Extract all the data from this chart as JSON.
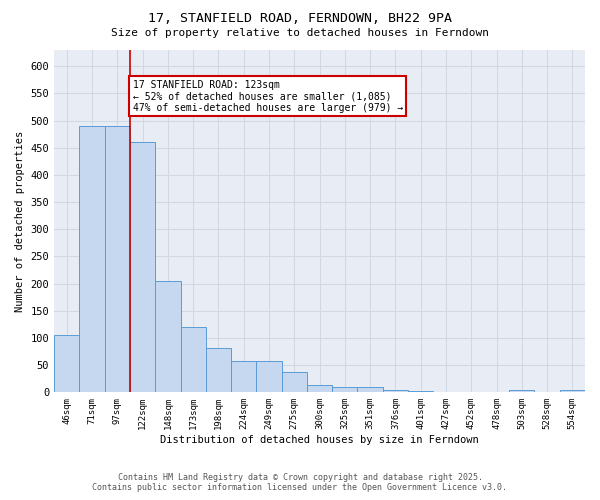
{
  "title_line1": "17, STANFIELD ROAD, FERNDOWN, BH22 9PA",
  "title_line2": "Size of property relative to detached houses in Ferndown",
  "xlabel": "Distribution of detached houses by size in Ferndown",
  "ylabel": "Number of detached properties",
  "categories": [
    "46sqm",
    "71sqm",
    "97sqm",
    "122sqm",
    "148sqm",
    "173sqm",
    "198sqm",
    "224sqm",
    "249sqm",
    "275sqm",
    "300sqm",
    "325sqm",
    "351sqm",
    "376sqm",
    "401sqm",
    "427sqm",
    "452sqm",
    "478sqm",
    "503sqm",
    "528sqm",
    "554sqm"
  ],
  "values": [
    105,
    490,
    490,
    460,
    205,
    120,
    82,
    58,
    58,
    38,
    14,
    10,
    10,
    5,
    2,
    0,
    0,
    0,
    5,
    0,
    5
  ],
  "bar_color": "#c5d8f0",
  "bar_edge_color": "#5b9bd5",
  "red_line_index": 3,
  "annotation_text": "17 STANFIELD ROAD: 123sqm\n← 52% of detached houses are smaller (1,085)\n47% of semi-detached houses are larger (979) →",
  "annotation_box_color": "#ffffff",
  "annotation_box_edge_color": "#cc0000",
  "red_line_color": "#cc0000",
  "grid_color": "#d0d8e4",
  "bg_color": "#e8edf5",
  "footer_line1": "Contains HM Land Registry data © Crown copyright and database right 2025.",
  "footer_line2": "Contains public sector information licensed under the Open Government Licence v3.0.",
  "ylim": [
    0,
    630
  ],
  "yticks": [
    0,
    50,
    100,
    150,
    200,
    250,
    300,
    350,
    400,
    450,
    500,
    550,
    600
  ]
}
